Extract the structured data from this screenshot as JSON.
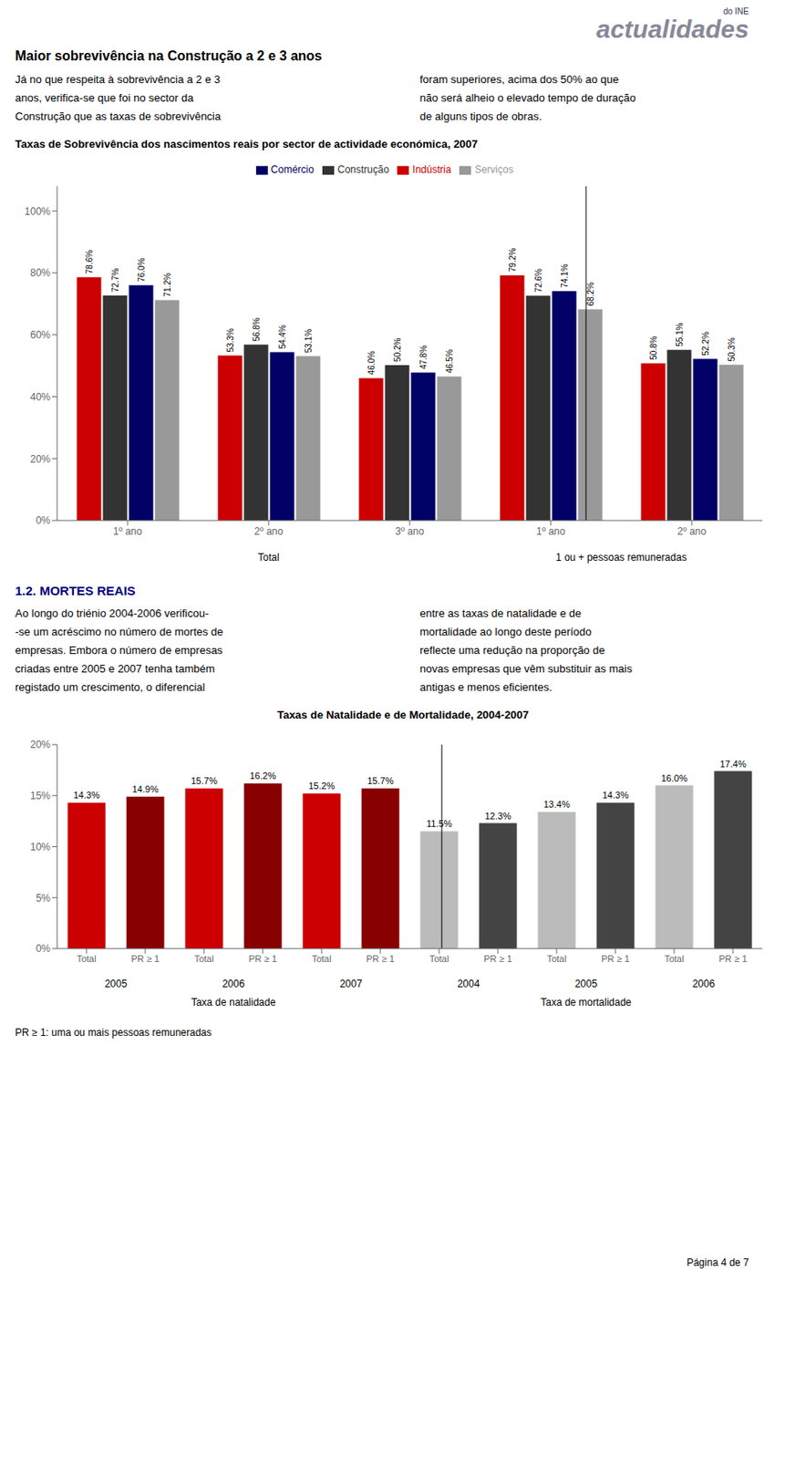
{
  "chart_data": [
    {
      "type": "bar",
      "title": "Taxas de Sobrevivência dos nascimentos reais por sector de actividade económica, 2007",
      "categories": [
        "1º ano",
        "2º ano",
        "3º ano",
        "1º ano",
        "2º ano"
      ],
      "series": [
        {
          "name": "Indústria",
          "color": "#CC0000",
          "values": [
            78.6,
            53.3,
            46.0,
            79.2,
            50.8
          ],
          "value_labels": [
            "78.6%",
            "53.3%",
            "46.0%",
            "79.2%",
            "50.8%"
          ]
        },
        {
          "name": "Construção",
          "color": "#333333",
          "values": [
            72.7,
            56.8,
            50.2,
            72.6,
            55.1
          ],
          "value_labels": [
            "72.7%",
            "56.8%",
            "50.2%",
            "72.6%",
            "55.1%"
          ]
        },
        {
          "name": "Comércio",
          "color": "#000066",
          "values": [
            76.0,
            54.4,
            47.8,
            74.1,
            52.2
          ],
          "value_labels": [
            "76.0%",
            "54.4%",
            "47.8%",
            "74.1%",
            "52.2%"
          ]
        },
        {
          "name": "Serviços",
          "color": "#999999",
          "values": [
            71.2,
            53.1,
            46.5,
            68.2,
            50.3
          ],
          "value_labels": [
            "71.2%",
            "53.1%",
            "46.5%",
            "68.2%",
            "50.3%"
          ]
        }
      ],
      "ylim": [
        0,
        108
      ],
      "yticks": [
        {
          "value": 0,
          "label": "0%"
        },
        {
          "value": 20,
          "label": "20%"
        },
        {
          "value": 40,
          "label": "40%"
        },
        {
          "value": 60,
          "label": "60%"
        },
        {
          "value": 80,
          "label": "80%"
        },
        {
          "value": 100,
          "label": "100%"
        }
      ],
      "legend": "top",
      "grid": false,
      "data_labels": true,
      "annotations": [
        "do INE",
        "actualidades",
        "Maior sobrevivência na Construção a 2 e 3 anos",
        "Já no que respeita à sobrevivência a 2 e 3",
        "anos, verifica-se que foi no sector da",
        "Construção que as taxas de sobrevivência",
        "foram superiores, acima dos 50% ao que",
        "não será alheio o elevado tempo de duração",
        "de alguns tipos de obras.",
        "Total",
        "1 ou + pessoas remuneradas"
      ]
    },
    {
      "type": "bar",
      "title": "Taxas de Natalidade e de Mortalidade, 2004-2007",
      "categories": [
        "Total",
        "PR ≥ 1",
        "Total",
        "PR ≥ 1",
        "Total",
        "PR ≥ 1",
        "Total",
        "PR ≥ 1",
        "Total",
        "PR ≥ 1",
        "Total",
        "PR ≥ 1"
      ],
      "values": [
        14.3,
        14.9,
        15.7,
        16.2,
        15.2,
        15.7,
        11.5,
        12.3,
        13.4,
        14.3,
        16.0,
        17.4
      ],
      "value_labels": [
        "14.3%",
        "14.9%",
        "15.7%",
        "16.2%",
        "15.2%",
        "15.7%",
        "11.5%",
        "12.3%",
        "13.4%",
        "14.3%",
        "16.0%",
        "17.4%"
      ],
      "colors": [
        "#CC0000",
        "#880000",
        "#CC0000",
        "#880000",
        "#CC0000",
        "#880000",
        "#BBBBBB",
        "#444444",
        "#BBBBBB",
        "#444444",
        "#BBBBBB",
        "#444444"
      ],
      "ylim": [
        0,
        20
      ],
      "yticks": [
        {
          "value": 0,
          "label": "0%"
        },
        {
          "value": 5,
          "label": "5%"
        },
        {
          "value": 10,
          "label": "10%"
        },
        {
          "value": 15,
          "label": "15%"
        },
        {
          "value": 20,
          "label": "20%"
        }
      ],
      "grid": false,
      "data_labels": true,
      "annotations": [
        "1.2. MORTES REAIS",
        "Ao longo do triénio 2004-2006 verificou-",
        "-se um acréscimo no número de mortes de",
        "empresas. Embora o número de empresas",
        "criadas entre 2005 e 2007 tenha também",
        "registado um crescimento, o diferencial",
        "entre as taxas de natalidade e de",
        "mortalidade ao longo deste período",
        "reflecte uma redução na proporção de",
        "novas empresas que vêm substituir as mais",
        "antigas e menos eficientes.",
        "2005",
        "2006",
        "2007",
        "2004",
        "2005",
        "2006",
        "Taxa de natalidade",
        "Taxa de mortalidade",
        "PR ≥ 1: uma ou mais pessoas remuneradas",
        "Página 4 de 7"
      ]
    }
  ]
}
